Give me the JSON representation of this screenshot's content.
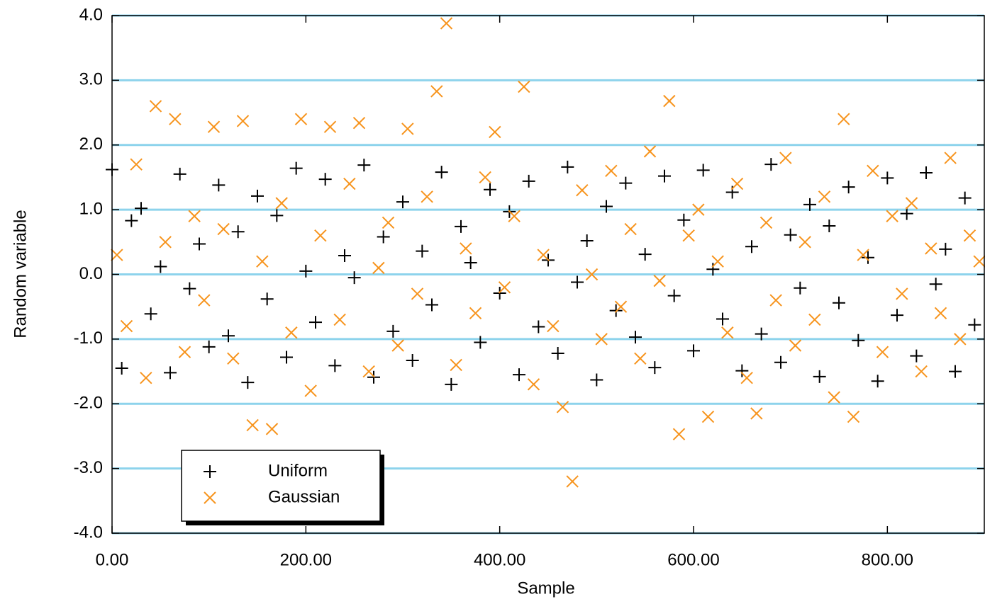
{
  "chart_data": {
    "type": "scatter",
    "x_label": "Sample",
    "y_label": "Random variable",
    "xlim": [
      0,
      900
    ],
    "ylim": [
      -4,
      4
    ],
    "xticks": [
      {
        "value": 0,
        "label": "0.00"
      },
      {
        "value": 200,
        "label": "200.00"
      },
      {
        "value": 400,
        "label": "400.00"
      },
      {
        "value": 600,
        "label": "600.00"
      },
      {
        "value": 800,
        "label": "800.00"
      }
    ],
    "yticks": [
      {
        "value": -4,
        "label": "-4.0"
      },
      {
        "value": -3,
        "label": "-3.0"
      },
      {
        "value": -2,
        "label": "-2.0"
      },
      {
        "value": -1,
        "label": "-1.0"
      },
      {
        "value": 0,
        "label": "0.0"
      },
      {
        "value": 1,
        "label": "1.0"
      },
      {
        "value": 2,
        "label": "2.0"
      },
      {
        "value": 3,
        "label": "3.0"
      },
      {
        "value": 4,
        "label": "4.0"
      }
    ],
    "grid": true,
    "grid_color": "#8dd3ec",
    "legend_position": "bottom-left",
    "series": [
      {
        "name": "Uniform",
        "color": "#000000",
        "marker": "plus",
        "x": [
          0,
          10,
          20,
          30,
          40,
          50,
          60,
          70,
          80,
          90,
          100,
          110,
          120,
          130,
          140,
          150,
          160,
          170,
          180,
          190,
          200,
          210,
          220,
          230,
          240,
          250,
          260,
          270,
          280,
          290,
          300,
          310,
          320,
          330,
          340,
          350,
          360,
          370,
          380,
          390,
          400,
          410,
          420,
          430,
          440,
          450,
          460,
          470,
          480,
          490,
          500,
          510,
          520,
          530,
          540,
          550,
          560,
          570,
          580,
          590,
          600,
          610,
          620,
          630,
          640,
          650,
          660,
          670,
          680,
          690,
          700,
          710,
          720,
          730,
          740,
          750,
          760,
          770,
          780,
          790,
          800,
          810,
          820,
          830,
          840,
          850,
          860,
          870,
          880,
          890
        ],
        "values": [
          1.62,
          -1.45,
          0.83,
          1.02,
          -0.61,
          0.12,
          -1.52,
          1.55,
          -0.22,
          0.47,
          -1.12,
          1.38,
          -0.95,
          0.66,
          -1.67,
          1.21,
          -0.38,
          0.91,
          -1.28,
          1.64,
          0.05,
          -0.74,
          1.47,
          -1.41,
          0.29,
          -0.05,
          1.69,
          -1.59,
          0.58,
          -0.88,
          1.12,
          -1.33,
          0.36,
          -0.47,
          1.58,
          -1.7,
          0.74,
          0.18,
          -1.05,
          1.31,
          -0.29,
          0.97,
          -1.55,
          1.44,
          -0.81,
          0.22,
          -1.22,
          1.66,
          -0.12,
          0.52,
          -1.63,
          1.05,
          -0.56,
          1.41,
          -0.97,
          0.31,
          -1.44,
          1.52,
          -0.33,
          0.84,
          -1.18,
          1.61,
          0.08,
          -0.69,
          1.27,
          -1.49,
          0.43,
          -0.92,
          1.7,
          -1.36,
          0.61,
          -0.21,
          1.08,
          -1.58,
          0.75,
          -0.44,
          1.35,
          -1.02,
          0.26,
          -1.65,
          1.49,
          -0.63,
          0.94,
          -1.26,
          1.57,
          -0.15,
          0.39,
          -1.5,
          1.18,
          -0.78
        ]
      },
      {
        "name": "Gaussian",
        "color": "#f7941d",
        "marker": "cross",
        "x": [
          5,
          15,
          25,
          35,
          45,
          55,
          65,
          75,
          85,
          95,
          105,
          115,
          125,
          135,
          145,
          155,
          165,
          175,
          185,
          195,
          205,
          215,
          225,
          235,
          245,
          255,
          265,
          275,
          285,
          295,
          305,
          315,
          325,
          335,
          345,
          355,
          365,
          375,
          385,
          395,
          405,
          415,
          425,
          435,
          445,
          455,
          465,
          475,
          485,
          495,
          505,
          515,
          525,
          535,
          545,
          555,
          565,
          575,
          585,
          595,
          605,
          615,
          625,
          635,
          645,
          655,
          665,
          675,
          685,
          695,
          705,
          715,
          725,
          735,
          745,
          755,
          765,
          775,
          785,
          795,
          805,
          815,
          825,
          835,
          845,
          855,
          865,
          875,
          885,
          895
        ],
        "values": [
          0.3,
          -0.8,
          1.7,
          -1.6,
          2.6,
          0.5,
          2.4,
          -1.2,
          0.9,
          -0.4,
          2.28,
          0.7,
          -1.3,
          2.37,
          -2.33,
          0.2,
          -2.39,
          1.1,
          -0.9,
          2.4,
          -1.8,
          0.6,
          2.28,
          -0.7,
          1.4,
          2.34,
          -1.5,
          0.1,
          0.8,
          -1.1,
          2.25,
          -0.3,
          1.2,
          2.83,
          3.88,
          -1.4,
          0.4,
          -0.6,
          1.5,
          2.2,
          -0.2,
          0.9,
          2.9,
          -1.7,
          0.3,
          -0.8,
          -2.05,
          -3.2,
          1.3,
          0.0,
          -1.0,
          1.6,
          -0.5,
          0.7,
          -1.3,
          1.9,
          -0.1,
          2.68,
          -2.47,
          0.6,
          1.0,
          -2.2,
          0.2,
          -0.9,
          1.4,
          -1.6,
          -2.15,
          0.8,
          -0.4,
          1.8,
          -1.1,
          0.5,
          -0.7,
          1.2,
          -1.9,
          2.4,
          -2.2,
          0.3,
          1.6,
          -1.2,
          0.9,
          -0.3,
          1.1,
          -1.5,
          0.4,
          -0.6,
          1.8,
          -1.0,
          0.6,
          0.2
        ]
      }
    ]
  }
}
